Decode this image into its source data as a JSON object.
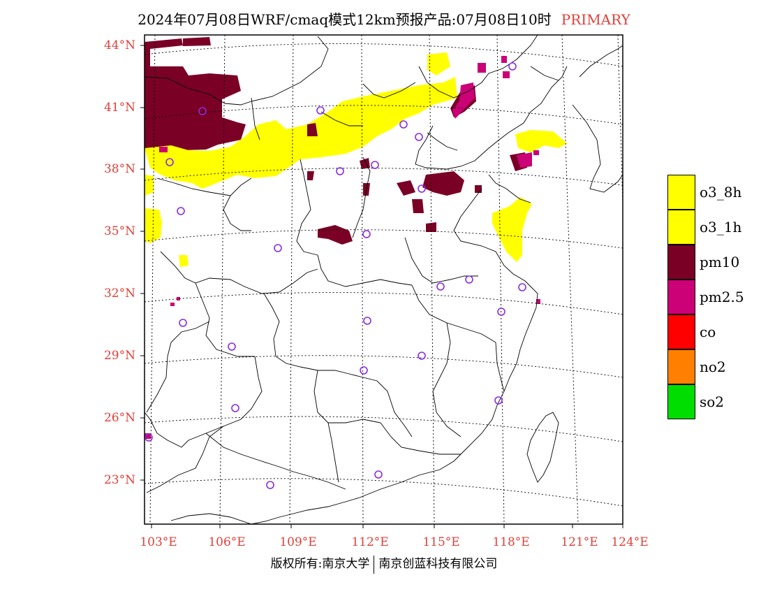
{
  "title": {
    "main": "2024年07月08日WRF/cmaq模式12km预报产品:07月08日10时",
    "tag": "PRIMARY"
  },
  "axes": {
    "lat_labels": [
      "44°N",
      "41°N",
      "38°N",
      "35°N",
      "32°N",
      "29°N",
      "26°N",
      "23°N"
    ],
    "lon_labels": [
      "103°E",
      "106°E",
      "109°E",
      "112°E",
      "115°E",
      "118°E",
      "121°E",
      "124°E"
    ]
  },
  "legend": [
    {
      "label": "o3_8h",
      "color": "#ffff00"
    },
    {
      "label": "o3_1h",
      "color": "#ffff00"
    },
    {
      "label": "pm10",
      "color": "#7a0026"
    },
    {
      "label": "pm2.5",
      "color": "#cc0077"
    },
    {
      "label": "co",
      "color": "#ff0000"
    },
    {
      "label": "no2",
      "color": "#ff8000"
    },
    {
      "label": "so2",
      "color": "#00dd00"
    }
  ],
  "footer": {
    "left": "版权所有:南京大学",
    "right": "南京创蓝科技有限公司"
  },
  "colors": {
    "o3": "#ffff00",
    "pm10": "#7a0026",
    "pm25": "#cc0077",
    "station": "#8a2be2",
    "label": "#e0403a"
  }
}
